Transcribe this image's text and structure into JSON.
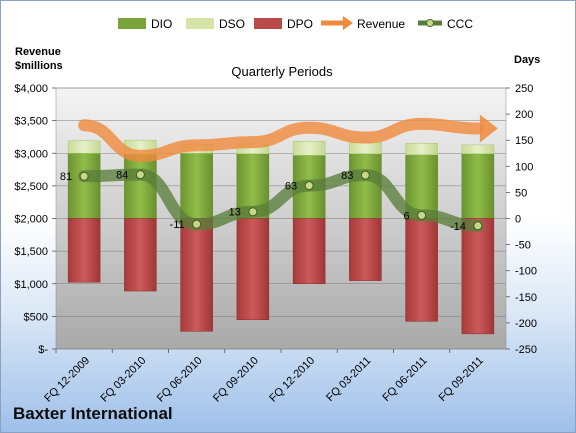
{
  "company": "Baxter International",
  "chart_data": {
    "type": "bar",
    "title": "Quarterly Periods",
    "ylabel_left": "Revenue\n$millions",
    "ylabel_right": "Days",
    "categories": [
      "FQ 12-2009",
      "FQ 03-2010",
      "FQ 06-2010",
      "FQ 09-2010",
      "FQ 12-2010",
      "FQ 03-2011",
      "FQ 06-2011",
      "FQ 09-2011"
    ],
    "left_axis": {
      "range": [
        0,
        4000
      ],
      "ticks": [
        "$-",
        "$500",
        "$1,000",
        "$1,500",
        "$2,000",
        "$2,500",
        "$3,000",
        "$3,500",
        "$4,000"
      ]
    },
    "right_axis": {
      "range": [
        -250,
        250
      ],
      "ticks": [
        "-250",
        "-200",
        "-150",
        "-100",
        "-50",
        "0",
        "50",
        "100",
        "150",
        "200",
        "250"
      ]
    },
    "grid": true,
    "legend_position": "top",
    "series": [
      {
        "name": "DIO",
        "type": "stacked-bar",
        "axis": "right",
        "color": "#7aa33a",
        "values": [
          125,
          123,
          125,
          124,
          121,
          124,
          122,
          124
        ]
      },
      {
        "name": "DSO",
        "type": "stacked-bar",
        "axis": "right",
        "color": "#d3e4a6",
        "values": [
          24,
          27,
          17,
          19,
          27,
          22,
          22,
          17
        ]
      },
      {
        "name": "DPO",
        "type": "bar",
        "axis": "right",
        "color": "#b84a4a",
        "values": [
          -122,
          -139,
          -216,
          -194,
          -125,
          -119,
          -197,
          -221
        ]
      },
      {
        "name": "Revenue",
        "type": "line",
        "axis": "left",
        "color": "#f08a3c",
        "values": [
          3430,
          2960,
          3120,
          3170,
          3390,
          3240,
          3450,
          3380
        ]
      },
      {
        "name": "CCC",
        "type": "line",
        "axis": "right",
        "color": "#5a7d3a",
        "values": [
          81,
          84,
          -11,
          13,
          63,
          83,
          6,
          -14
        ],
        "labels": [
          "81",
          "84",
          "-11",
          "13",
          "63",
          "83",
          "6",
          "-14"
        ]
      }
    ]
  }
}
